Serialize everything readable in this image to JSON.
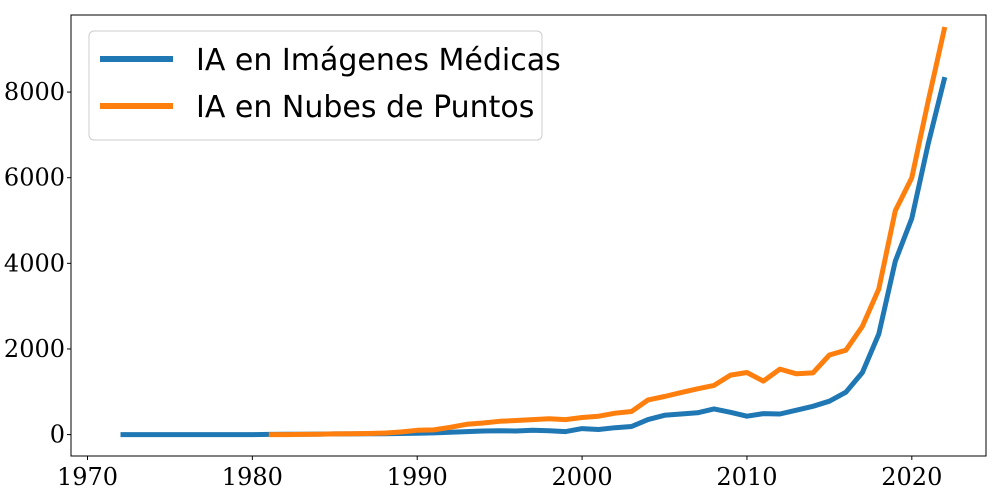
{
  "chart_data": {
    "type": "line",
    "title": "",
    "xlabel": "",
    "ylabel": "",
    "xlim": [
      1969,
      2024.5
    ],
    "ylim": [
      -500,
      9800
    ],
    "xticks": [
      1970,
      1980,
      1990,
      2000,
      2010,
      2020
    ],
    "yticks": [
      0,
      2000,
      4000,
      6000,
      8000
    ],
    "legend_position": "top-left",
    "series": [
      {
        "name": "IA en Imágenes Médicas",
        "color": "#1f77b4",
        "x": [
          1972,
          1973,
          1974,
          1975,
          1976,
          1977,
          1978,
          1979,
          1980,
          1981,
          1982,
          1983,
          1984,
          1985,
          1986,
          1987,
          1988,
          1989,
          1990,
          1991,
          1992,
          1993,
          1994,
          1995,
          1996,
          1997,
          1998,
          1999,
          2000,
          2001,
          2002,
          2003,
          2004,
          2005,
          2006,
          2007,
          2008,
          2009,
          2010,
          2011,
          2012,
          2013,
          2014,
          2015,
          2016,
          2017,
          2018,
          2019,
          2020,
          2021,
          2022
        ],
        "y": [
          0,
          0,
          0,
          0,
          0,
          0,
          0,
          0,
          0,
          5,
          8,
          10,
          12,
          15,
          15,
          18,
          20,
          25,
          30,
          40,
          55,
          70,
          85,
          90,
          85,
          100,
          90,
          70,
          140,
          120,
          160,
          190,
          350,
          450,
          480,
          510,
          600,
          520,
          430,
          490,
          480,
          570,
          660,
          780,
          990,
          1450,
          2350,
          4050,
          5050,
          6800,
          8350
        ]
      },
      {
        "name": "IA en Nubes de Puntos",
        "color": "#ff7f0e",
        "x": [
          1981,
          1982,
          1983,
          1984,
          1985,
          1986,
          1987,
          1988,
          1989,
          1990,
          1991,
          1992,
          1993,
          1994,
          1995,
          1996,
          1997,
          1998,
          1999,
          2000,
          2001,
          2002,
          2003,
          2004,
          2005,
          2006,
          2007,
          2008,
          2009,
          2010,
          2011,
          2012,
          2013,
          2014,
          2015,
          2016,
          2017,
          2018,
          2019,
          2020,
          2021,
          2022
        ],
        "y": [
          0,
          0,
          5,
          10,
          15,
          20,
          25,
          35,
          60,
          100,
          110,
          170,
          240,
          270,
          310,
          330,
          350,
          370,
          350,
          400,
          430,
          500,
          540,
          810,
          890,
          980,
          1070,
          1150,
          1390,
          1450,
          1250,
          1530,
          1420,
          1440,
          1860,
          1970,
          2530,
          3400,
          5230,
          6000,
          7800,
          9520
        ]
      }
    ]
  }
}
